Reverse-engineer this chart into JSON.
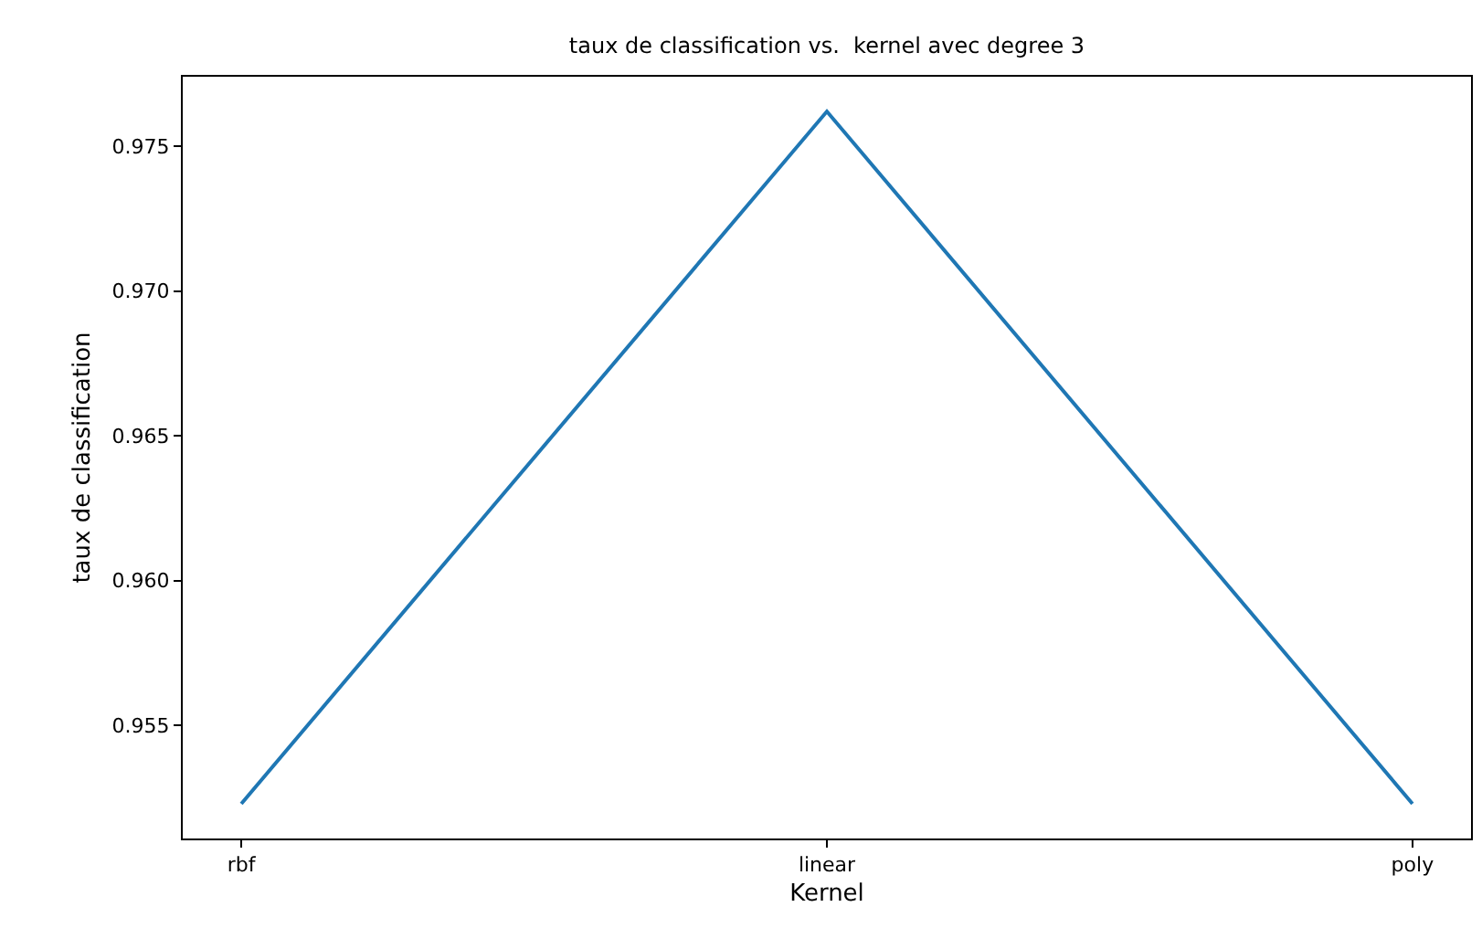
{
  "chart_data": {
    "type": "line",
    "title": "taux de classification vs.  kernel avec degree 3",
    "xlabel": "Kernel",
    "ylabel": "taux de classification",
    "categories": [
      "rbf",
      "linear",
      "poly"
    ],
    "series": [
      {
        "color": "#1f77b4",
        "values": [
          0.9523,
          0.9762,
          0.9523
        ]
      }
    ],
    "ylim": [
      0.9511,
      0.9774
    ],
    "yticks": [
      0.955,
      {
        "value": 0.96,
        "label": "0.960"
      },
      0.965,
      {
        "value": 0.97,
        "label": "0.970"
      },
      0.975
    ],
    "grid": false,
    "marker": "none",
    "line_style": "solid"
  }
}
